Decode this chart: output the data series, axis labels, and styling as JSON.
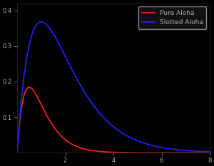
{
  "background_color": "#000000",
  "axes_color": "#000000",
  "text_color": "#aaaaaa",
  "tick_color": "#aaaaaa",
  "pure_aloha_color": "#ff2222",
  "slotted_aloha_color": "#2222ff",
  "legend_labels": [
    "Pure Aloha",
    "Slotted Aloha"
  ],
  "legend_facecolor": "#111111",
  "legend_edgecolor": "#888888",
  "line_width": 1.2,
  "xlim": [
    0,
    8
  ],
  "ylim": [
    0,
    0.42
  ],
  "xtick_values": [
    2,
    4,
    6,
    8
  ],
  "ytick_values": [
    0.1,
    0.2,
    0.3,
    0.4
  ],
  "xtick_fontsize": 6,
  "ytick_fontsize": 6,
  "g_start": 0.0001,
  "g_end": 8.0,
  "n_points": 2000,
  "spine_color": "#333333"
}
